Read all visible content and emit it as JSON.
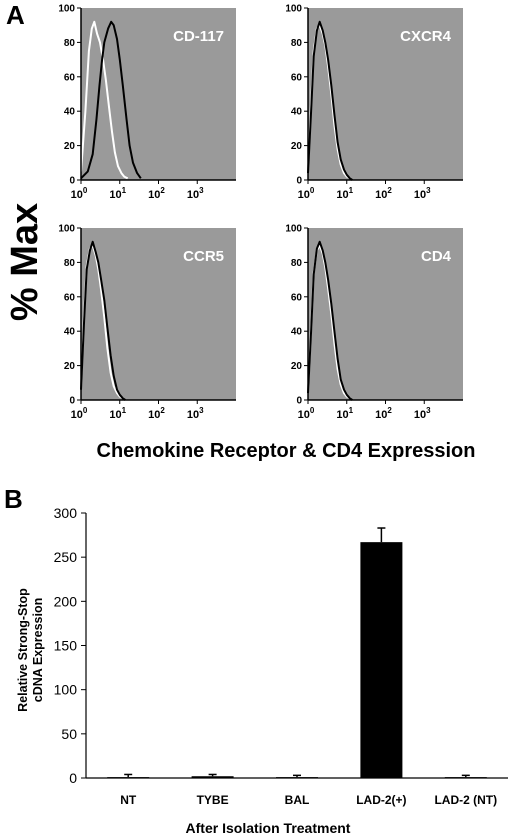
{
  "figure": {
    "panel_a_letter": "A",
    "panel_b_letter": "B"
  },
  "panel_a": {
    "y_title": "% Max",
    "x_title": "Chemokine Receptor & CD4 Expression",
    "colors": {
      "plot_bg": "#9a9a9a",
      "isotype_line": "#ffffff",
      "stain_line": "#000000"
    },
    "chart_data": [
      {
        "type": "line",
        "title": "CD-117",
        "xscale": "log",
        "xlim": [
          1,
          10000
        ],
        "ylim": [
          0,
          100
        ],
        "x_ticks": [
          "10",
          "10",
          "10",
          "10"
        ],
        "x_tick_exponents": [
          "0",
          "1",
          "2",
          "3"
        ],
        "y_ticks": [
          "0",
          "20",
          "40",
          "60",
          "80",
          "100"
        ],
        "series": [
          {
            "color": "#ffffff",
            "x": [
              1,
              1.3,
              1.6,
              1.9,
              2.2,
              2.6,
              3.1,
              3.7,
              4.4,
              5.3,
              6.3,
              7.5,
              9,
              11,
              13,
              16
            ],
            "y": [
              5,
              40,
              75,
              88,
              92,
              85,
              80,
              70,
              58,
              42,
              28,
              16,
              8,
              4,
              2,
              1
            ]
          },
          {
            "color": "#000000",
            "x": [
              1,
              1.5,
              2,
              2.5,
              3,
              3.5,
              4,
              5,
              6,
              7,
              8.5,
              10,
              12,
              15,
              18,
              22,
              28,
              35
            ],
            "y": [
              1,
              5,
              15,
              35,
              55,
              70,
              80,
              88,
              92,
              90,
              82,
              70,
              55,
              35,
              20,
              10,
              4,
              1
            ]
          }
        ]
      },
      {
        "type": "line",
        "title": "CXCR4",
        "xscale": "log",
        "xlim": [
          1,
          10000
        ],
        "ylim": [
          0,
          100
        ],
        "x_ticks": [
          "10",
          "10",
          "10",
          "10"
        ],
        "x_tick_exponents": [
          "0",
          "1",
          "2",
          "3"
        ],
        "y_ticks": [
          "0",
          "20",
          "40",
          "60",
          "80",
          "100"
        ],
        "series": [
          {
            "color": "#ffffff",
            "x": [
              1,
              1.2,
              1.4,
              1.7,
              2,
              2.4,
              2.8,
              3.3,
              4,
              4.8,
              5.8,
              7,
              8.5,
              10,
              12
            ],
            "y": [
              6,
              45,
              75,
              88,
              90,
              85,
              78,
              66,
              50,
              32,
              18,
              9,
              4,
              2,
              1
            ]
          },
          {
            "color": "#000000",
            "x": [
              1,
              1.2,
              1.4,
              1.7,
              2,
              2.4,
              2.8,
              3.3,
              4,
              4.8,
              5.8,
              7,
              8.5,
              10,
              12,
              14
            ],
            "y": [
              4,
              40,
              72,
              87,
              92,
              87,
              80,
              70,
              55,
              38,
              22,
              12,
              6,
              3,
              1,
              0
            ]
          }
        ]
      },
      {
        "type": "line",
        "title": "CCR5",
        "xscale": "log",
        "xlim": [
          1,
          10000
        ],
        "ylim": [
          0,
          100
        ],
        "x_ticks": [
          "10",
          "10",
          "10",
          "10"
        ],
        "x_tick_exponents": [
          "0",
          "1",
          "2",
          "3"
        ],
        "y_ticks": [
          "0",
          "20",
          "40",
          "60",
          "80",
          "100"
        ],
        "series": [
          {
            "color": "#ffffff",
            "x": [
              1,
              1.2,
              1.4,
              1.7,
              2,
              2.4,
              2.8,
              3.3,
              4,
              4.8,
              5.8,
              7,
              8.5,
              10,
              12
            ],
            "y": [
              8,
              50,
              78,
              88,
              90,
              84,
              76,
              64,
              48,
              30,
              16,
              8,
              4,
              2,
              1
            ]
          },
          {
            "color": "#000000",
            "x": [
              1,
              1.2,
              1.4,
              1.7,
              2,
              2.4,
              2.8,
              3.3,
              4,
              4.8,
              5.8,
              7,
              8.5,
              10,
              12,
              14
            ],
            "y": [
              6,
              46,
              76,
              87,
              92,
              86,
              80,
              70,
              58,
              42,
              26,
              14,
              6,
              3,
              1,
              0
            ]
          }
        ]
      },
      {
        "type": "line",
        "title": "CD4",
        "xscale": "log",
        "xlim": [
          1,
          10000
        ],
        "ylim": [
          0,
          100
        ],
        "x_ticks": [
          "10",
          "10",
          "10",
          "10"
        ],
        "x_tick_exponents": [
          "0",
          "1",
          "2",
          "3"
        ],
        "y_ticks": [
          "0",
          "20",
          "40",
          "60",
          "80",
          "100"
        ],
        "series": [
          {
            "color": "#ffffff",
            "x": [
              1,
              1.2,
              1.4,
              1.7,
              2,
              2.4,
              2.8,
              3.3,
              4,
              4.8,
              5.8,
              7,
              8.5,
              10,
              12
            ],
            "y": [
              5,
              42,
              74,
              87,
              90,
              85,
              77,
              65,
              50,
              33,
              18,
              9,
              4,
              2,
              1
            ]
          },
          {
            "color": "#000000",
            "x": [
              1,
              1.2,
              1.4,
              1.7,
              2,
              2.4,
              2.8,
              3.3,
              4,
              4.8,
              5.8,
              7,
              8.5,
              10,
              12,
              14
            ],
            "y": [
              4,
              40,
              73,
              88,
              92,
              87,
              80,
              70,
              56,
              40,
              24,
              12,
              6,
              3,
              1,
              0
            ]
          }
        ]
      }
    ]
  },
  "panel_b": {
    "chart_data": {
      "type": "bar",
      "categories": [
        "NT",
        "TYBE",
        "BAL",
        "LAD-2(+)",
        "LAD-2 (NT)"
      ],
      "values": [
        1,
        2,
        1,
        267,
        1
      ],
      "errors": [
        3,
        2,
        2,
        16,
        2
      ],
      "bar_color": "#000000",
      "ylim": [
        0,
        300
      ],
      "yticks": [
        "0",
        "50",
        "100",
        "150",
        "200",
        "250",
        "300"
      ],
      "ylabel_line1": "Relative Strong-Stop",
      "ylabel_line2": "cDNA Expression",
      "xlabel": "After Isolation Treatment"
    }
  }
}
